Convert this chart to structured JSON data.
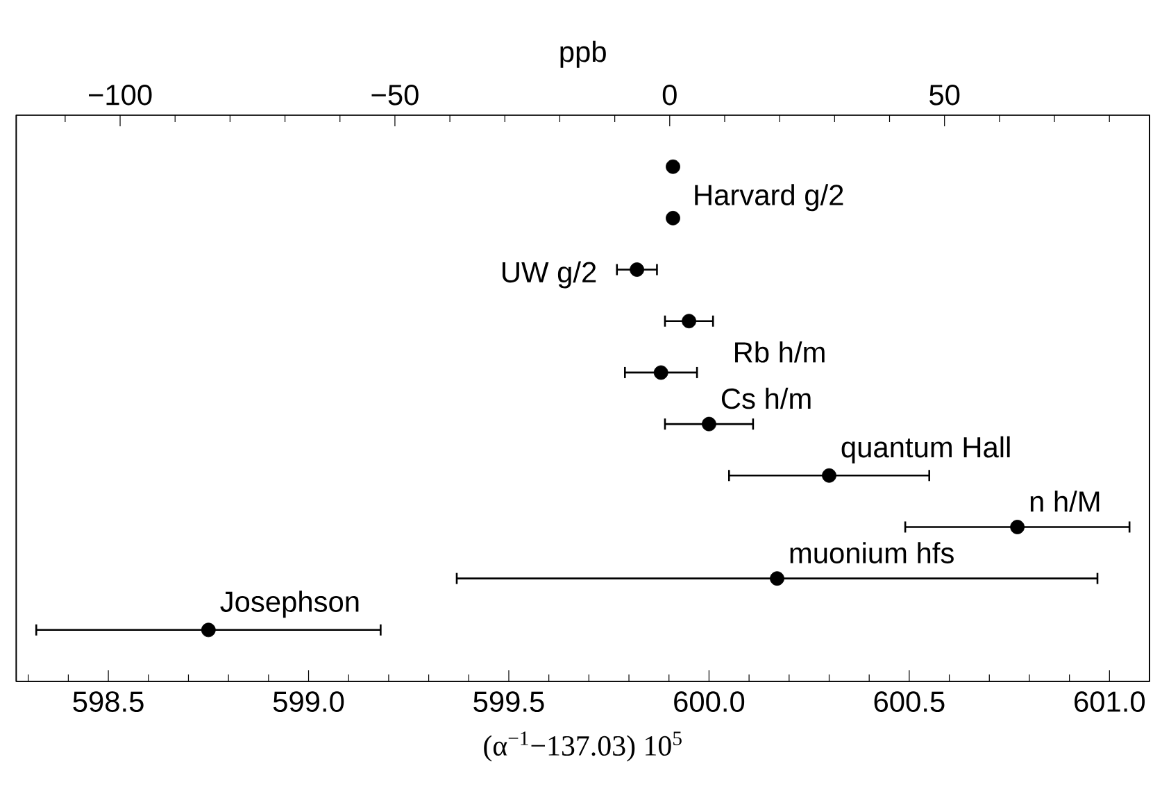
{
  "chart_data": {
    "type": "scatter",
    "orientation": "horizontal",
    "marker": "circle",
    "tick_labels": "x",
    "categories": [
      null,
      null,
      null,
      null,
      null,
      null,
      null,
      null,
      null,
      null
    ],
    "series": [
      {
        "name": "Harvard g/2",
        "color": "#000000",
        "values": [
          599.91,
          599.91,
          null,
          null,
          null,
          null,
          null,
          null,
          null,
          null
        ],
        "errors": [
          null,
          null,
          null,
          null,
          null,
          null,
          null,
          null,
          null,
          null
        ]
      },
      {
        "name": "UW g/2",
        "color": "#000000",
        "values": [
          null,
          null,
          599.82,
          null,
          null,
          null,
          null,
          null,
          null,
          null
        ],
        "errors": [
          null,
          null,
          0.05,
          null,
          null,
          null,
          null,
          null,
          null,
          null
        ]
      },
      {
        "name": "Rb h/m",
        "color": "#000000",
        "values": [
          null,
          null,
          null,
          599.95,
          599.88,
          null,
          null,
          null,
          null,
          null
        ],
        "errors": [
          null,
          null,
          null,
          0.06,
          0.09,
          null,
          null,
          null,
          null,
          null
        ]
      },
      {
        "name": "Cs h/m",
        "color": "#000000",
        "values": [
          null,
          null,
          null,
          null,
          null,
          600.0,
          null,
          null,
          null,
          null
        ],
        "errors": [
          null,
          null,
          null,
          null,
          null,
          0.11,
          null,
          null,
          null,
          null
        ]
      },
      {
        "name": "quantum Hall",
        "color": "#000000",
        "values": [
          null,
          null,
          null,
          null,
          null,
          null,
          600.3,
          null,
          null,
          null
        ],
        "errors": [
          null,
          null,
          null,
          null,
          null,
          null,
          0.25,
          null,
          null,
          null
        ]
      },
      {
        "name": "n h/M",
        "color": "#000000",
        "values": [
          null,
          null,
          null,
          null,
          null,
          null,
          null,
          600.77,
          null,
          null
        ],
        "errors": [
          null,
          null,
          null,
          null,
          null,
          null,
          null,
          0.28,
          null,
          null
        ]
      },
      {
        "name": "muonium hfs",
        "color": "#000000",
        "values": [
          null,
          null,
          null,
          null,
          null,
          null,
          null,
          null,
          600.17,
          null
        ],
        "errors": [
          null,
          null,
          null,
          null,
          null,
          null,
          null,
          null,
          0.8,
          null
        ]
      },
      {
        "name": "Josephson",
        "color": "#000000",
        "values": [
          null,
          null,
          null,
          null,
          null,
          null,
          null,
          null,
          null,
          598.75
        ],
        "errors": [
          null,
          null,
          null,
          null,
          null,
          null,
          null,
          null,
          null,
          0.43
        ]
      }
    ],
    "xlabel": "(α$^{−1}$−137.03) 10$^{5}$",
    "x2label": "ppb",
    "xlim": [
      598.27,
      601.1
    ],
    "xticks": [
      {
        "value": 598.3,
        "label": null
      },
      {
        "value": 598.4,
        "label": null
      },
      598.5,
      {
        "value": 598.6,
        "label": null
      },
      {
        "value": 598.7,
        "label": null
      },
      {
        "value": 598.8,
        "label": null
      },
      {
        "value": 598.9,
        "label": null
      },
      {
        "value": 599,
        "label": "599.0"
      },
      {
        "value": 599.1,
        "label": null
      },
      {
        "value": 599.2,
        "label": null
      },
      {
        "value": 599.3,
        "label": null
      },
      {
        "value": 599.4,
        "label": null
      },
      599.5,
      {
        "value": 599.6,
        "label": null
      },
      {
        "value": 599.7,
        "label": null
      },
      {
        "value": 599.8,
        "label": null
      },
      {
        "value": 599.9,
        "label": null
      },
      {
        "value": 600,
        "label": "600.0"
      },
      {
        "value": 600.1,
        "label": null
      },
      {
        "value": 600.2,
        "label": null
      },
      {
        "value": 600.3,
        "label": null
      },
      {
        "value": 600.4,
        "label": null
      },
      600.5,
      {
        "value": 600.6,
        "label": null
      },
      {
        "value": 600.7,
        "label": null
      },
      {
        "value": 600.8,
        "label": null
      },
      {
        "value": 600.9,
        "label": null
      },
      {
        "value": 601,
        "label": "601.0"
      }
    ],
    "x2lim": [
      -118.9,
      87.3
    ],
    "x2ticks": [
      {
        "value": -110,
        "label": null
      },
      {
        "value": -100,
        "label": "−100"
      },
      {
        "value": -90,
        "label": null
      },
      {
        "value": -80,
        "label": null
      },
      {
        "value": -70,
        "label": null
      },
      {
        "value": -60,
        "label": null
      },
      {
        "value": -50,
        "label": "−50"
      },
      {
        "value": -40,
        "label": null
      },
      {
        "value": -30,
        "label": null
      },
      {
        "value": -20,
        "label": null
      },
      {
        "value": -10,
        "label": null
      },
      0,
      {
        "value": 10,
        "label": null
      },
      {
        "value": 20,
        "label": null
      },
      {
        "value": 30,
        "label": null
      },
      {
        "value": 40,
        "label": null
      },
      50,
      {
        "value": 60,
        "label": null
      },
      {
        "value": 70,
        "label": null
      },
      {
        "value": 80,
        "label": null
      }
    ]
  }
}
